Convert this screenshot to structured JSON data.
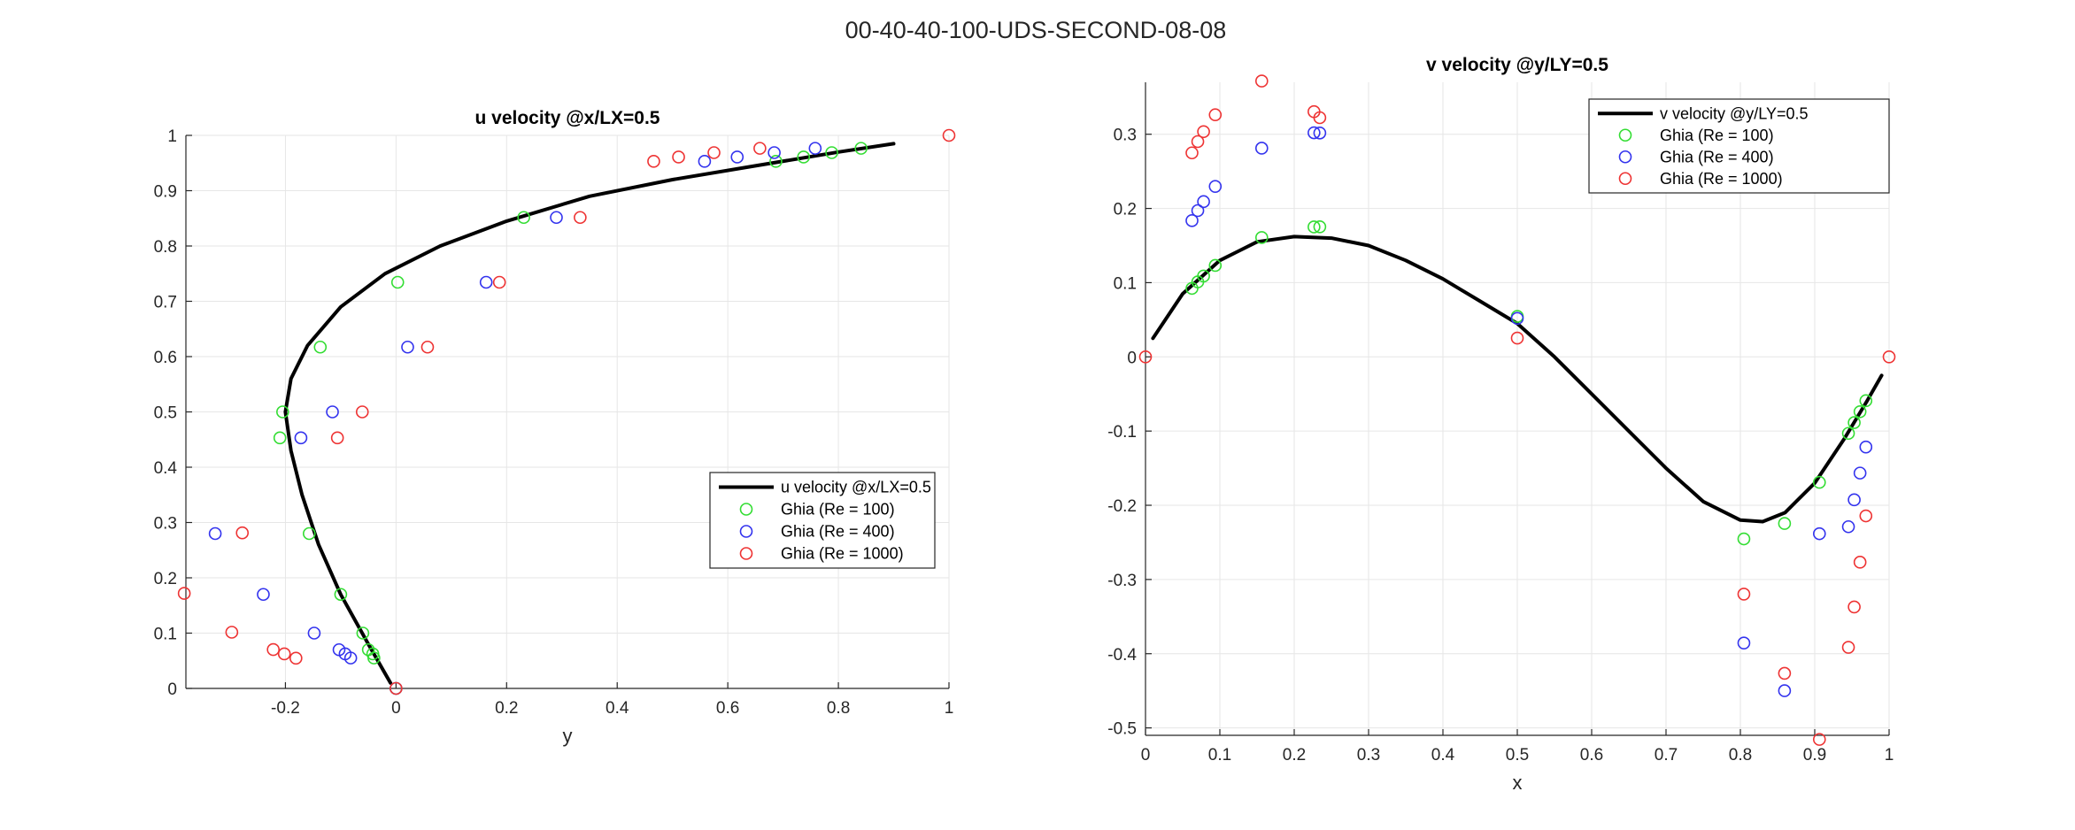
{
  "figure": {
    "title": "00-40-40-100-UDS-SECOND-08-08"
  },
  "chart_data": [
    {
      "type": "line",
      "title": "u velocity @x/LX=0.5",
      "xlabel": "y",
      "ylabel": "",
      "xlim": [
        -0.38,
        1
      ],
      "ylim": [
        0,
        1
      ],
      "xticks": [
        -0.2,
        0,
        0.2,
        0.4,
        0.6,
        0.8,
        1
      ],
      "xtick_labels": [
        "-0.2",
        "0",
        "0.2",
        "0.4",
        "0.6",
        "0.8",
        "1"
      ],
      "yticks": [
        0,
        0.1,
        0.2,
        0.3,
        0.4,
        0.5,
        0.6,
        0.7,
        0.8,
        0.9,
        1
      ],
      "ytick_labels": [
        "0",
        "0.1",
        "0.2",
        "0.3",
        "0.4",
        "0.5",
        "0.6",
        "0.7",
        "0.8",
        "0.9",
        "1"
      ],
      "grid": true,
      "legend_position": "lower-right",
      "series": [
        {
          "name": "u velocity @x/LX=0.5",
          "kind": "line",
          "color": "#000000",
          "x": [
            -0.01,
            -0.05,
            -0.1,
            -0.14,
            -0.17,
            -0.19,
            -0.2,
            -0.19,
            -0.16,
            -0.1,
            -0.02,
            0.08,
            0.2,
            0.35,
            0.5,
            0.65,
            0.8,
            0.9
          ],
          "y": [
            0.01,
            0.08,
            0.17,
            0.26,
            0.35,
            0.43,
            0.5,
            0.56,
            0.62,
            0.69,
            0.75,
            0.8,
            0.845,
            0.89,
            0.92,
            0.945,
            0.97,
            0.985
          ]
        },
        {
          "name": "Ghia (Re = 100)",
          "kind": "scatter",
          "color": "#33dd33",
          "x": [
            0,
            -0.04,
            -0.042,
            -0.05,
            -0.06,
            -0.1,
            -0.157,
            -0.21,
            -0.205,
            -0.137,
            0.003,
            0.231,
            0.687,
            0.737,
            0.788,
            0.841
          ],
          "y": [
            0,
            0.055,
            0.0625,
            0.07,
            0.1,
            0.17,
            0.28,
            0.4531,
            0.5,
            0.6172,
            0.7344,
            0.8516,
            0.9531,
            0.9609,
            0.9688,
            0.9766
          ]
        },
        {
          "name": "Ghia (Re = 400)",
          "kind": "scatter",
          "color": "#3333ee",
          "x": [
            0,
            -0.082,
            -0.092,
            -0.103,
            -0.148,
            -0.24,
            -0.327,
            -0.172,
            -0.115,
            0.021,
            0.163,
            0.29,
            0.558,
            0.617,
            0.684,
            0.758
          ],
          "y": [
            0,
            0.055,
            0.0625,
            0.07,
            0.1,
            0.17,
            0.28,
            0.4531,
            0.5,
            0.6172,
            0.7344,
            0.8516,
            0.9531,
            0.9609,
            0.9688,
            0.9766
          ]
        },
        {
          "name": "Ghia (Re = 1000)",
          "kind": "scatter",
          "color": "#ee3333",
          "x": [
            0,
            -0.181,
            -0.202,
            -0.222,
            -0.297,
            -0.383,
            -0.278,
            -0.106,
            -0.061,
            0.057,
            0.187,
            0.333,
            0.466,
            0.511,
            0.575,
            0.658,
            1
          ],
          "y": [
            0,
            0.0547,
            0.0625,
            0.0703,
            0.1016,
            0.1719,
            0.2813,
            0.4531,
            0.5,
            0.6172,
            0.7344,
            0.8516,
            0.9531,
            0.9609,
            0.9688,
            0.9766,
            1
          ]
        }
      ]
    },
    {
      "type": "line",
      "title": "v velocity @y/LY=0.5",
      "xlabel": "x",
      "ylabel": "",
      "xlim": [
        0,
        1
      ],
      "ylim": [
        -0.51,
        0.37
      ],
      "xticks": [
        0,
        0.1,
        0.2,
        0.3,
        0.4,
        0.5,
        0.6,
        0.7,
        0.8,
        0.9,
        1
      ],
      "xtick_labels": [
        "0",
        "0.1",
        "0.2",
        "0.3",
        "0.4",
        "0.5",
        "0.6",
        "0.7",
        "0.8",
        "0.9",
        "1"
      ],
      "yticks": [
        -0.5,
        -0.4,
        -0.3,
        -0.2,
        -0.1,
        0,
        0.1,
        0.2,
        0.3
      ],
      "ytick_labels": [
        "-0.5",
        "-0.4",
        "-0.3",
        "-0.2",
        "-0.1",
        "0",
        "0.1",
        "0.2",
        "0.3"
      ],
      "grid": true,
      "legend_position": "top-right",
      "series": [
        {
          "name": "v velocity @y/LY=0.5",
          "kind": "line",
          "color": "#000000",
          "x": [
            0.01,
            0.05,
            0.1,
            0.15,
            0.2,
            0.25,
            0.3,
            0.35,
            0.4,
            0.45,
            0.5,
            0.55,
            0.6,
            0.65,
            0.7,
            0.75,
            0.8,
            0.83,
            0.86,
            0.9,
            0.94,
            0.97,
            0.99
          ],
          "y": [
            0.025,
            0.085,
            0.13,
            0.155,
            0.162,
            0.16,
            0.15,
            0.13,
            0.105,
            0.075,
            0.045,
            0.0,
            -0.05,
            -0.1,
            -0.15,
            -0.195,
            -0.22,
            -0.222,
            -0.21,
            -0.17,
            -0.11,
            -0.06,
            -0.025
          ]
        },
        {
          "name": "Ghia (Re = 100)",
          "kind": "scatter",
          "color": "#33dd33",
          "x": [
            0.0625,
            0.0703,
            0.0781,
            0.0938,
            0.1563,
            0.2266,
            0.2344,
            0.5,
            0.8047,
            0.8594,
            0.9063,
            0.9453,
            0.9531,
            0.9609,
            0.9688
          ],
          "y": [
            0.0923,
            0.101,
            0.1089,
            0.1232,
            0.1608,
            0.1751,
            0.1753,
            0.0545,
            -0.2453,
            -0.2245,
            -0.1691,
            -0.1031,
            -0.0886,
            -0.0739,
            -0.0591
          ]
        },
        {
          "name": "Ghia (Re = 400)",
          "kind": "scatter",
          "color": "#3333ee",
          "x": [
            0.0625,
            0.0703,
            0.0781,
            0.0938,
            0.1563,
            0.2266,
            0.2344,
            0.5,
            0.8047,
            0.8594,
            0.9063,
            0.9453,
            0.9531,
            0.9609,
            0.9688
          ],
          "y": [
            0.1836,
            0.1971,
            0.2092,
            0.2297,
            0.2812,
            0.302,
            0.3017,
            0.0519,
            -0.3856,
            -0.4499,
            -0.2383,
            -0.2289,
            -0.1926,
            -0.1566,
            -0.1215
          ]
        },
        {
          "name": "Ghia (Re = 1000)",
          "kind": "scatter",
          "color": "#ee3333",
          "x": [
            0,
            0.0625,
            0.0703,
            0.0781,
            0.0938,
            0.1563,
            0.2266,
            0.2344,
            0.5,
            0.8047,
            0.8594,
            0.9063,
            0.9453,
            0.9531,
            0.9609,
            0.9688,
            1
          ],
          "y": [
            0,
            0.2749,
            0.2901,
            0.3035,
            0.3262,
            0.3717,
            0.3304,
            0.3223,
            0.0253,
            -0.3197,
            -0.4265,
            -0.5155,
            -0.3914,
            -0.337,
            -0.2767,
            -0.2143,
            0
          ]
        }
      ]
    }
  ]
}
